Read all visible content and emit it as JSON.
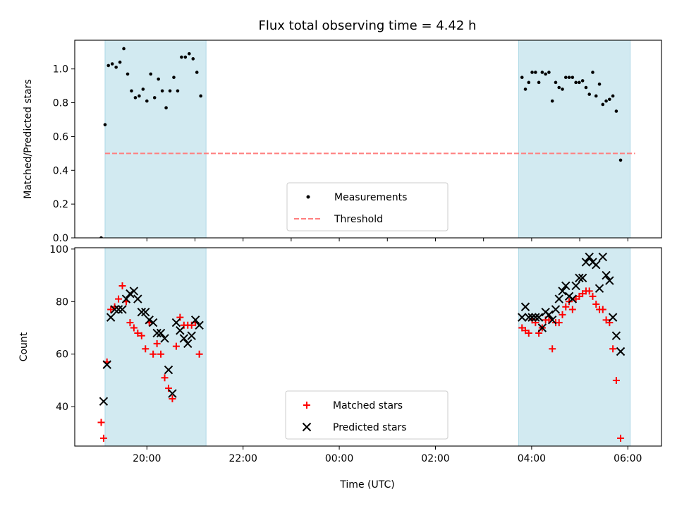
{
  "figure": {
    "title": "Flux total observing time = 4.42 h",
    "xlabel": "Time (UTC)"
  },
  "colors": {
    "shade": "#add8e6",
    "measurement": "#000000",
    "threshold": "#ff7f7f",
    "matched": "#ff0000",
    "predicted": "#000000"
  },
  "chart_data": [
    {
      "type": "scatter",
      "ylabel": "Matched/Predicted stars",
      "x_axis_units": "hours since 00:00 UTC (negative = previous day)",
      "xlim": [
        -5.5,
        6.7
      ],
      "ylim": [
        0,
        1.17
      ],
      "xticks": [
        {
          "value": -4,
          "label": "20:00"
        },
        {
          "value": -2,
          "label": "22:00"
        },
        {
          "value": 0,
          "label": "00:00"
        },
        {
          "value": 2,
          "label": "02:00"
        },
        {
          "value": 4,
          "label": "04:00"
        },
        {
          "value": 6,
          "label": "06:00"
        }
      ],
      "xticks_minor": [
        -3,
        -1,
        1,
        3,
        5
      ],
      "yticks": [
        {
          "value": 0,
          "label": "0.0"
        },
        {
          "value": 0.2,
          "label": "0.2"
        },
        {
          "value": 0.4,
          "label": "0.4"
        },
        {
          "value": 0.6,
          "label": "0.6"
        },
        {
          "value": 0.8,
          "label": "0.8"
        },
        {
          "value": 1.0,
          "label": "1.0"
        }
      ],
      "shaded_intervals": [
        [
          -4.87,
          -2.77
        ],
        [
          3.73,
          6.05
        ]
      ],
      "threshold": {
        "label": "Threshold",
        "value": 0.5,
        "x_range": [
          -4.87,
          6.15
        ]
      },
      "legend": {
        "placement": "lower center",
        "entries": [
          "Measurements",
          "Threshold"
        ]
      },
      "series": [
        {
          "name": "Measurements",
          "marker": "dot",
          "points": [
            [
              -4.95,
              0.0
            ],
            [
              -4.87,
              0.67
            ],
            [
              -4.8,
              1.02
            ],
            [
              -4.72,
              1.03
            ],
            [
              -4.64,
              1.01
            ],
            [
              -4.56,
              1.04
            ],
            [
              -4.48,
              1.12
            ],
            [
              -4.4,
              0.97
            ],
            [
              -4.32,
              0.87
            ],
            [
              -4.24,
              0.83
            ],
            [
              -4.16,
              0.84
            ],
            [
              -4.08,
              0.88
            ],
            [
              -4.0,
              0.81
            ],
            [
              -3.92,
              0.97
            ],
            [
              -3.84,
              0.83
            ],
            [
              -3.76,
              0.94
            ],
            [
              -3.68,
              0.87
            ],
            [
              -3.6,
              0.77
            ],
            [
              -3.52,
              0.87
            ],
            [
              -3.44,
              0.95
            ],
            [
              -3.36,
              0.87
            ],
            [
              -3.28,
              1.07
            ],
            [
              -3.2,
              1.07
            ],
            [
              -3.12,
              1.09
            ],
            [
              -3.04,
              1.06
            ],
            [
              -2.96,
              0.98
            ],
            [
              -2.88,
              0.84
            ],
            [
              3.8,
              0.95
            ],
            [
              3.87,
              0.88
            ],
            [
              3.94,
              0.92
            ],
            [
              4.01,
              0.98
            ],
            [
              4.08,
              0.98
            ],
            [
              4.15,
              0.92
            ],
            [
              4.22,
              0.98
            ],
            [
              4.29,
              0.97
            ],
            [
              4.36,
              0.98
            ],
            [
              4.43,
              0.81
            ],
            [
              4.5,
              0.92
            ],
            [
              4.57,
              0.89
            ],
            [
              4.64,
              0.88
            ],
            [
              4.71,
              0.95
            ],
            [
              4.78,
              0.95
            ],
            [
              4.85,
              0.95
            ],
            [
              4.92,
              0.92
            ],
            [
              4.99,
              0.92
            ],
            [
              5.06,
              0.93
            ],
            [
              5.13,
              0.89
            ],
            [
              5.2,
              0.85
            ],
            [
              5.27,
              0.98
            ],
            [
              5.34,
              0.84
            ],
            [
              5.41,
              0.91
            ],
            [
              5.48,
              0.79
            ],
            [
              5.55,
              0.81
            ],
            [
              5.62,
              0.82
            ],
            [
              5.69,
              0.84
            ],
            [
              5.76,
              0.75
            ],
            [
              5.85,
              0.46
            ]
          ]
        }
      ]
    },
    {
      "type": "scatter",
      "ylabel": "Count",
      "x_axis_units": "hours since 00:00 UTC (negative = previous day)",
      "xlim": [
        -5.5,
        6.7
      ],
      "ylim": [
        25,
        100.5
      ],
      "xticks": [
        {
          "value": -4,
          "label": "20:00"
        },
        {
          "value": -2,
          "label": "22:00"
        },
        {
          "value": 0,
          "label": "00:00"
        },
        {
          "value": 2,
          "label": "02:00"
        },
        {
          "value": 4,
          "label": "04:00"
        },
        {
          "value": 6,
          "label": "06:00"
        }
      ],
      "yticks": [
        {
          "value": 40,
          "label": "40"
        },
        {
          "value": 60,
          "label": "60"
        },
        {
          "value": 80,
          "label": "80"
        },
        {
          "value": 100,
          "label": "100"
        }
      ],
      "shaded_intervals": [
        [
          -4.87,
          -2.77
        ],
        [
          3.73,
          6.05
        ]
      ],
      "legend": {
        "placement": "lower center",
        "entries": [
          "Matched stars",
          "Predicted stars"
        ]
      },
      "series": [
        {
          "name": "Matched stars",
          "marker": "plus",
          "points": [
            [
              -4.95,
              34
            ],
            [
              -4.9,
              28
            ],
            [
              -4.83,
              57
            ],
            [
              -4.75,
              77
            ],
            [
              -4.67,
              78
            ],
            [
              -4.59,
              81
            ],
            [
              -4.51,
              86
            ],
            [
              -4.43,
              80
            ],
            [
              -4.35,
              72
            ],
            [
              -4.27,
              70
            ],
            [
              -4.19,
              68
            ],
            [
              -4.11,
              67
            ],
            [
              -4.03,
              62
            ],
            [
              -3.95,
              72
            ],
            [
              -3.87,
              60
            ],
            [
              -3.79,
              64
            ],
            [
              -3.71,
              60
            ],
            [
              -3.63,
              51
            ],
            [
              -3.55,
              47
            ],
            [
              -3.47,
              43
            ],
            [
              -3.39,
              63
            ],
            [
              -3.31,
              74
            ],
            [
              -3.23,
              71
            ],
            [
              -3.15,
              71
            ],
            [
              -3.07,
              71
            ],
            [
              -2.99,
              72
            ],
            [
              -2.91,
              60
            ],
            [
              3.8,
              70
            ],
            [
              3.87,
              69
            ],
            [
              3.94,
              68
            ],
            [
              4.01,
              73
            ],
            [
              4.08,
              72
            ],
            [
              4.15,
              68
            ],
            [
              4.22,
              70
            ],
            [
              4.29,
              73
            ],
            [
              4.36,
              73
            ],
            [
              4.43,
              62
            ],
            [
              4.5,
              72
            ],
            [
              4.57,
              72
            ],
            [
              4.64,
              75
            ],
            [
              4.71,
              78
            ],
            [
              4.78,
              80
            ],
            [
              4.85,
              77
            ],
            [
              4.92,
              81
            ],
            [
              4.99,
              82
            ],
            [
              5.06,
              83
            ],
            [
              5.13,
              84
            ],
            [
              5.2,
              84
            ],
            [
              5.27,
              82
            ],
            [
              5.34,
              79
            ],
            [
              5.41,
              77
            ],
            [
              5.48,
              77
            ],
            [
              5.55,
              73
            ],
            [
              5.62,
              72
            ],
            [
              5.69,
              62
            ],
            [
              5.76,
              50
            ],
            [
              5.85,
              28
            ]
          ]
        },
        {
          "name": "Predicted stars",
          "marker": "x",
          "points": [
            [
              -4.9,
              42
            ],
            [
              -4.83,
              56
            ],
            [
              -4.75,
              74
            ],
            [
              -4.67,
              77
            ],
            [
              -4.59,
              77
            ],
            [
              -4.51,
              77
            ],
            [
              -4.43,
              81
            ],
            [
              -4.35,
              83
            ],
            [
              -4.27,
              84
            ],
            [
              -4.19,
              81
            ],
            [
              -4.11,
              76
            ],
            [
              -4.03,
              76
            ],
            [
              -3.95,
              73
            ],
            [
              -3.87,
              72
            ],
            [
              -3.79,
              68
            ],
            [
              -3.71,
              68
            ],
            [
              -3.63,
              66
            ],
            [
              -3.55,
              54
            ],
            [
              -3.47,
              45
            ],
            [
              -3.39,
              72
            ],
            [
              -3.31,
              69
            ],
            [
              -3.23,
              66
            ],
            [
              -3.15,
              64
            ],
            [
              -3.07,
              67
            ],
            [
              -2.99,
              73
            ],
            [
              -2.91,
              71
            ],
            [
              3.8,
              74
            ],
            [
              3.87,
              78
            ],
            [
              3.94,
              74
            ],
            [
              4.01,
              74
            ],
            [
              4.08,
              74
            ],
            [
              4.15,
              74
            ],
            [
              4.22,
              70
            ],
            [
              4.29,
              76
            ],
            [
              4.36,
              75
            ],
            [
              4.43,
              73
            ],
            [
              4.5,
              77
            ],
            [
              4.57,
              81
            ],
            [
              4.64,
              84
            ],
            [
              4.71,
              86
            ],
            [
              4.78,
              82
            ],
            [
              4.85,
              81
            ],
            [
              4.92,
              86
            ],
            [
              4.99,
              89
            ],
            [
              5.06,
              89
            ],
            [
              5.13,
              95
            ],
            [
              5.2,
              97
            ],
            [
              5.27,
              95
            ],
            [
              5.34,
              94
            ],
            [
              5.41,
              85
            ],
            [
              5.48,
              97
            ],
            [
              5.55,
              90
            ],
            [
              5.62,
              88
            ],
            [
              5.69,
              74
            ],
            [
              5.76,
              67
            ],
            [
              5.85,
              61
            ]
          ]
        }
      ]
    }
  ]
}
